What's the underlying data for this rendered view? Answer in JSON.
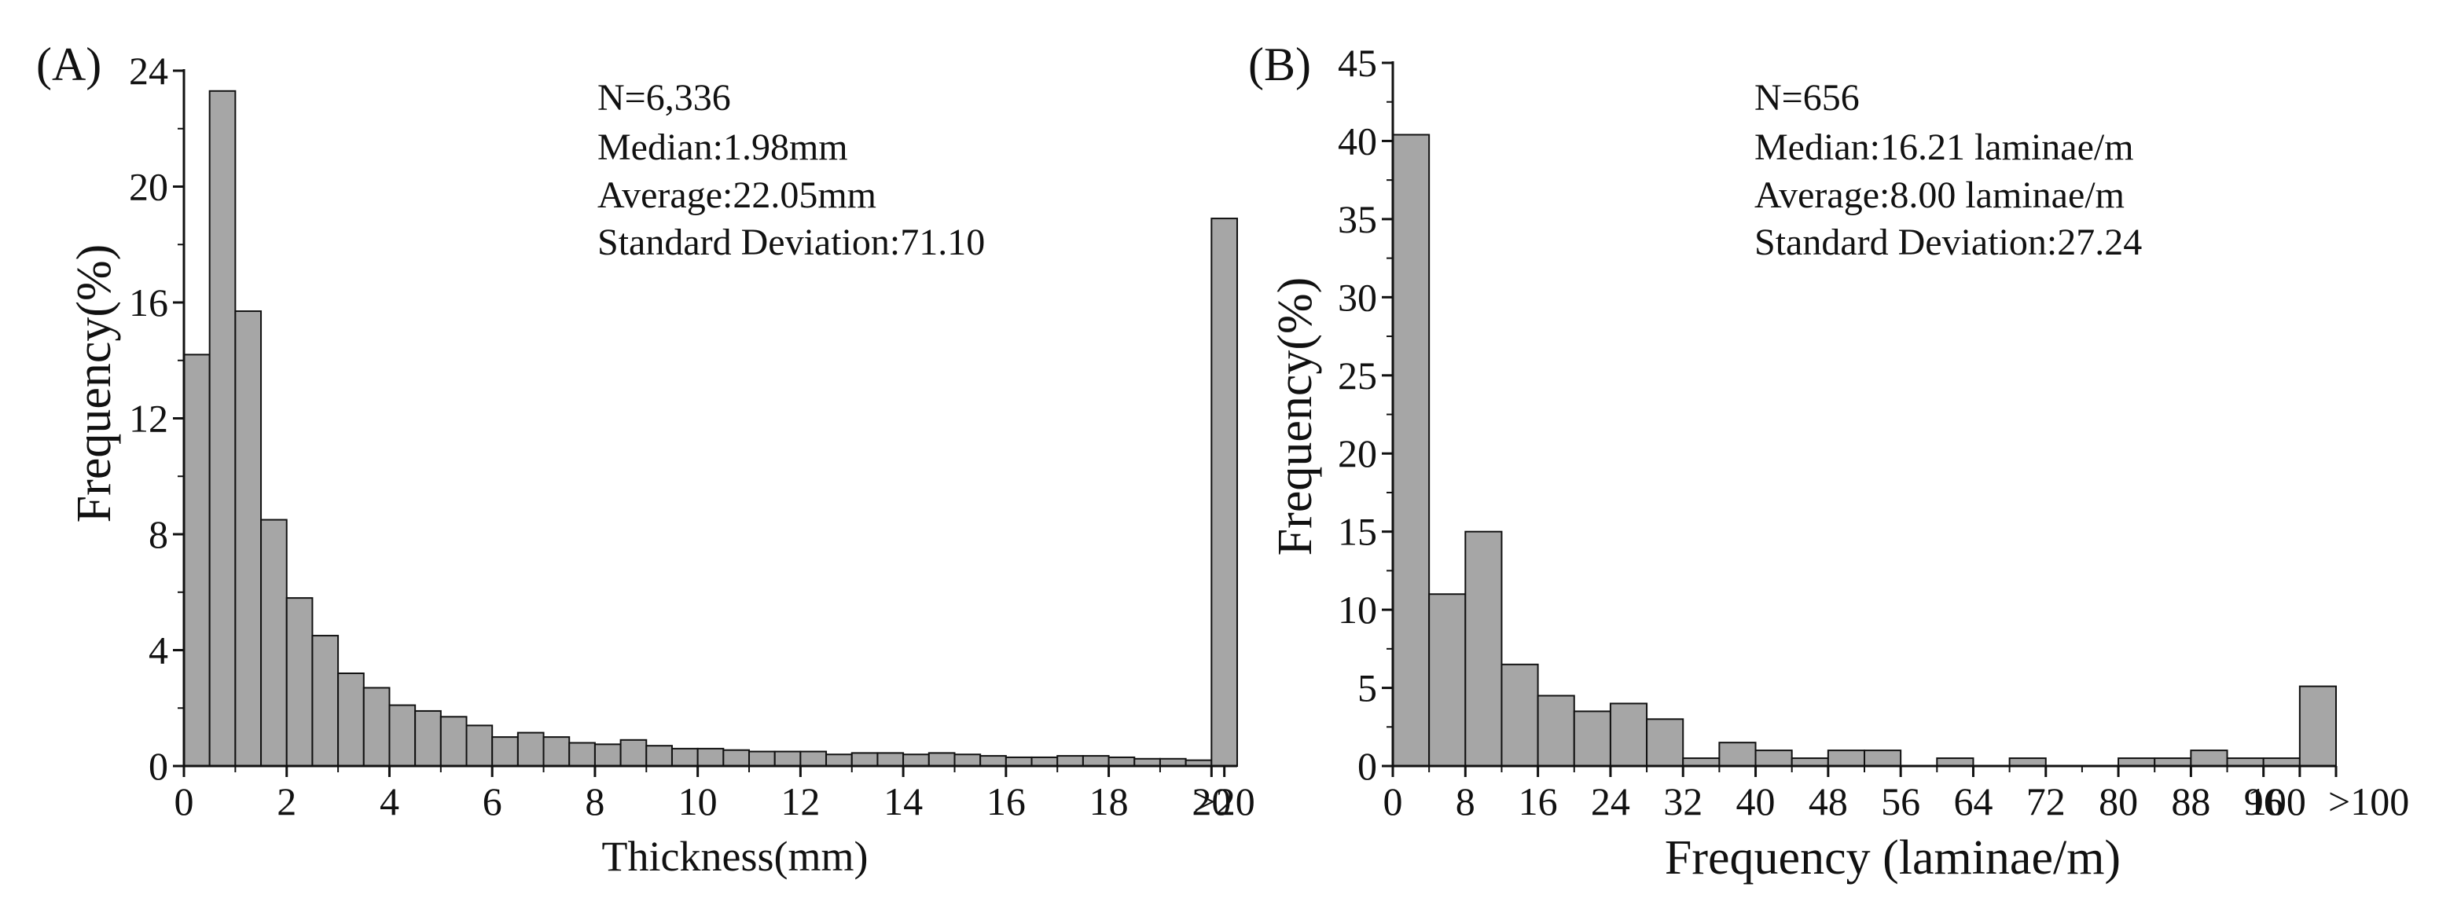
{
  "colors": {
    "bar_fill": "#a6a6a6",
    "bar_stroke": "#111111",
    "axis": "#111111"
  },
  "chart_data": [
    {
      "type": "bar",
      "panel_label": "(A)",
      "xlabel": "Thickness(mm)",
      "ylabel": "Frequency(%)",
      "ylim": [
        0,
        24
      ],
      "yticks": [
        "0",
        "4",
        "8",
        "12",
        "16",
        "20",
        "24"
      ],
      "xticks": [
        "0",
        "2",
        "4",
        "6",
        "8",
        "10",
        "12",
        "14",
        "16",
        "18",
        "20",
        ">20"
      ],
      "grid": false,
      "bin_width": 0.5,
      "bins": [
        "0-0.5",
        "0.5-1",
        "1-1.5",
        "1.5-2",
        "2-2.5",
        "2.5-3",
        "3-3.5",
        "3.5-4",
        "4-4.5",
        "4.5-5",
        "5-5.5",
        "5.5-6",
        "6-6.5",
        "6.5-7",
        "7-7.5",
        "7.5-8",
        "8-8.5",
        "8.5-9",
        "9-9.5",
        "9.5-10",
        "10-10.5",
        "10.5-11",
        "11-11.5",
        "11.5-12",
        "12-12.5",
        "12.5-13",
        "13-13.5",
        "13.5-14",
        "14-14.5",
        "14.5-15",
        "15-15.5",
        "15.5-16",
        "16-16.5",
        "16.5-17",
        "17-17.5",
        "17.5-18",
        "18-18.5",
        "18.5-19",
        "19-19.5",
        "19.5-20",
        ">20"
      ],
      "values": [
        14.2,
        23.3,
        15.7,
        8.5,
        5.8,
        4.5,
        3.2,
        2.7,
        2.1,
        1.9,
        1.7,
        1.4,
        1.0,
        1.15,
        1.0,
        0.8,
        0.75,
        0.9,
        0.7,
        0.6,
        0.6,
        0.55,
        0.5,
        0.5,
        0.5,
        0.4,
        0.45,
        0.45,
        0.4,
        0.45,
        0.4,
        0.35,
        0.3,
        0.3,
        0.35,
        0.35,
        0.3,
        0.25,
        0.25,
        0.2,
        18.9
      ],
      "stats": [
        "N=6,336",
        "Median:1.98mm",
        "Average:22.05mm",
        "Standard Deviation:71.10"
      ]
    },
    {
      "type": "bar",
      "panel_label": "(B)",
      "xlabel": "Frequency (laminae/m)",
      "ylabel": "Frequency(%)",
      "ylim": [
        0,
        45
      ],
      "yticks": [
        "0",
        "5",
        "10",
        "15",
        "20",
        "25",
        "30",
        "35",
        "40",
        "45"
      ],
      "xticks": [
        "0",
        "8",
        "16",
        "24",
        "32",
        "40",
        "48",
        "56",
        "64",
        "72",
        "80",
        "88",
        "96",
        "100",
        ">100"
      ],
      "grid": false,
      "bin_width": 4,
      "bins": [
        "0-4",
        "4-8",
        "8-12",
        "12-16",
        "16-20",
        "20-24",
        "24-28",
        "28-32",
        "32-36",
        "36-40",
        "40-44",
        "44-48",
        "48-52",
        "52-56",
        "56-60",
        "60-64",
        "64-68",
        "68-72",
        "72-76",
        "76-80",
        "80-84",
        "84-88",
        "88-92",
        "92-96",
        "96-100",
        ">100"
      ],
      "values": [
        40.4,
        11.0,
        15.0,
        6.5,
        4.5,
        3.5,
        4.0,
        3.0,
        0.5,
        1.5,
        1.0,
        0.5,
        1.0,
        1.0,
        0,
        0.5,
        0,
        0.5,
        0,
        0,
        0.5,
        0.5,
        1.0,
        0.5,
        0.5,
        5.1
      ],
      "stats": [
        "N=656",
        "Median:16.21 laminae/m",
        "Average:8.00 laminae/m",
        "Standard Deviation:27.24"
      ]
    }
  ]
}
